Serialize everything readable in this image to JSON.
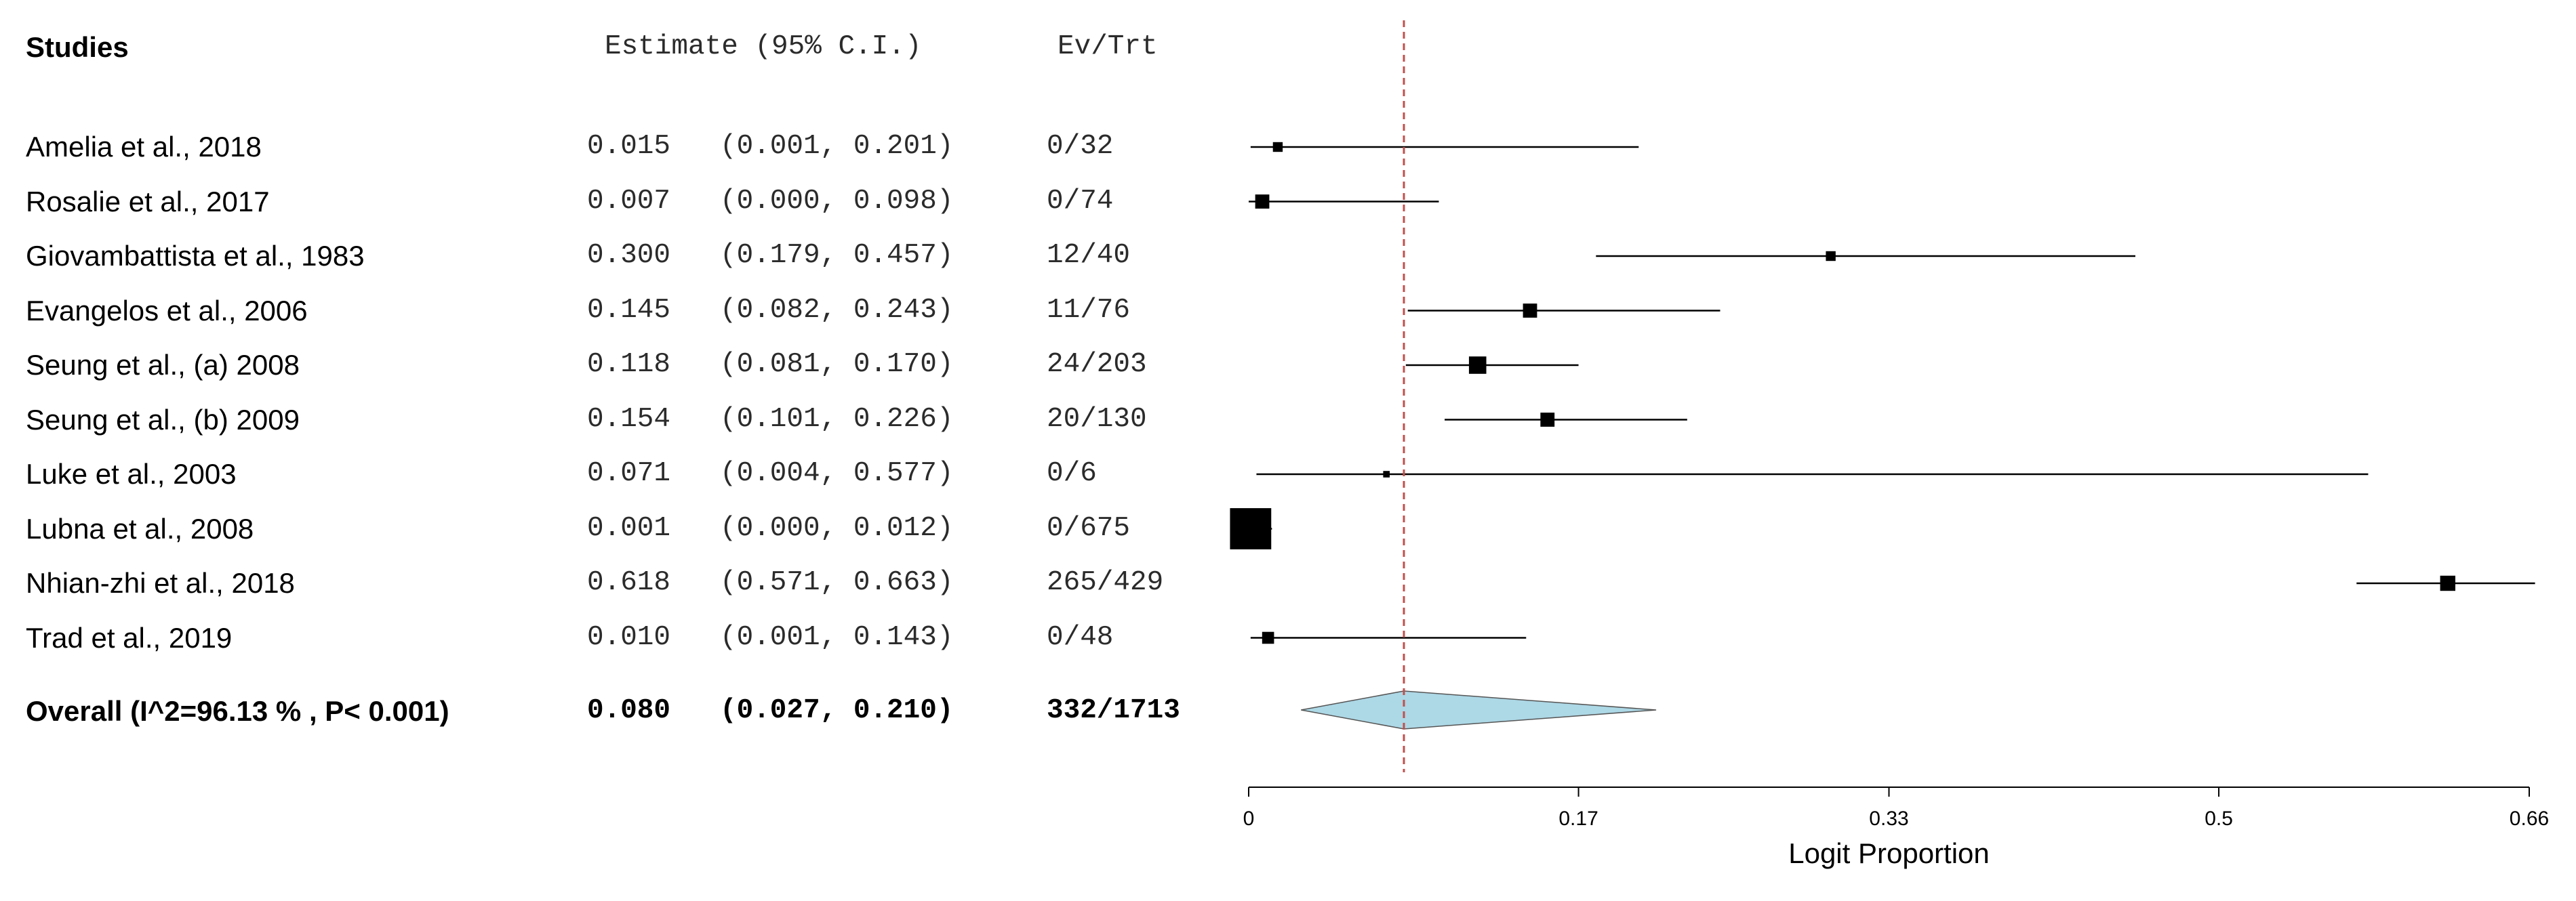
{
  "chart_data": {
    "type": "forest",
    "headers": {
      "studies": "Studies",
      "estimate": "Estimate (95% C.I.)",
      "events": "Ev/Trt"
    },
    "studies": [
      {
        "name": "Amelia et al., 2018",
        "estimate_text": "0.015",
        "ci_text": "(0.001, 0.201)",
        "events": "0/32",
        "estimate": 0.015,
        "lower": 0.001,
        "upper": 0.201
      },
      {
        "name": "Rosalie et al., 2017",
        "estimate_text": "0.007",
        "ci_text": "(0.000, 0.098)",
        "events": "0/74",
        "estimate": 0.007,
        "lower": 0.0,
        "upper": 0.098
      },
      {
        "name": "Giovambattista et al., 1983",
        "estimate_text": "0.300",
        "ci_text": "(0.179, 0.457)",
        "events": "12/40",
        "estimate": 0.3,
        "lower": 0.179,
        "upper": 0.457
      },
      {
        "name": "Evangelos et al., 2006",
        "estimate_text": "0.145",
        "ci_text": "(0.082, 0.243)",
        "events": "11/76",
        "estimate": 0.145,
        "lower": 0.082,
        "upper": 0.243
      },
      {
        "name": "Seung et al., (a) 2008",
        "estimate_text": "0.118",
        "ci_text": "(0.081, 0.170)",
        "events": "24/203",
        "estimate": 0.118,
        "lower": 0.081,
        "upper": 0.17
      },
      {
        "name": "Seung et al., (b) 2009",
        "estimate_text": "0.154",
        "ci_text": "(0.101, 0.226)",
        "events": "20/130",
        "estimate": 0.154,
        "lower": 0.101,
        "upper": 0.226
      },
      {
        "name": "Luke et al., 2003",
        "estimate_text": "0.071",
        "ci_text": "(0.004, 0.577)",
        "events": "0/6",
        "estimate": 0.071,
        "lower": 0.004,
        "upper": 0.577
      },
      {
        "name": "Lubna et al., 2008",
        "estimate_text": "0.001",
        "ci_text": "(0.000, 0.012)",
        "events": "0/675",
        "estimate": 0.001,
        "lower": 0.0,
        "upper": 0.012
      },
      {
        "name": "Nhian-zhi et al., 2018",
        "estimate_text": "0.618",
        "ci_text": "(0.571, 0.663)",
        "events": "265/429",
        "estimate": 0.618,
        "lower": 0.571,
        "upper": 0.663
      },
      {
        "name": "Trad et al., 2019",
        "estimate_text": "0.010",
        "ci_text": "(0.001, 0.143)",
        "events": "0/48",
        "estimate": 0.01,
        "lower": 0.001,
        "upper": 0.143
      }
    ],
    "weights": [
      0.9,
      1.3,
      0.9,
      1.3,
      1.6,
      1.3,
      0.6,
      3.8,
      1.4,
      1.1
    ],
    "overall": {
      "label": "Overall (I^2=96.13 % , P< 0.001)",
      "estimate_text": "0.080",
      "ci_text": "(0.027, 0.210)",
      "events": "332/1713",
      "estimate": 0.08,
      "lower": 0.027,
      "upper": 0.21
    },
    "xlabel": "Logit Proportion",
    "xticks": [
      0,
      0.17,
      0.33,
      0.5,
      0.66
    ],
    "xtick_labels": [
      "0",
      "0.17",
      "0.33",
      "0.5",
      "0.66"
    ],
    "xlim": [
      0,
      0.66
    ],
    "reference_line": 0.08,
    "colors": {
      "diamond_fill": "#add8e6",
      "reference_line": "#c0504d",
      "marker": "#000000"
    }
  }
}
